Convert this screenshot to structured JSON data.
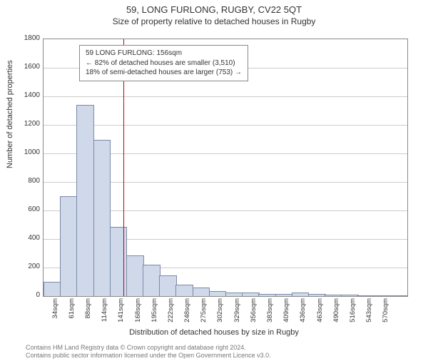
{
  "title": "59, LONG FURLONG, RUGBY, CV22 5QT",
  "subtitle": "Size of property relative to detached houses in Rugby",
  "chart": {
    "type": "histogram",
    "ylabel": "Number of detached properties",
    "xlabel": "Distribution of detached houses by size in Rugby",
    "ylim": [
      0,
      1800
    ],
    "ytick_step": 200,
    "yticks": [
      0,
      200,
      400,
      600,
      800,
      1000,
      1200,
      1400,
      1600,
      1800
    ],
    "xticks": [
      "34sqm",
      "61sqm",
      "88sqm",
      "114sqm",
      "141sqm",
      "168sqm",
      "195sqm",
      "222sqm",
      "248sqm",
      "275sqm",
      "302sqm",
      "329sqm",
      "356sqm",
      "383sqm",
      "409sqm",
      "436sqm",
      "463sqm",
      "490sqm",
      "516sqm",
      "543sqm",
      "570sqm"
    ],
    "bars": [
      95,
      695,
      1335,
      1090,
      480,
      280,
      215,
      140,
      75,
      55,
      30,
      18,
      18,
      12,
      10,
      22,
      8,
      5,
      3,
      0,
      0,
      0
    ],
    "bar_color": "#cfd9ea",
    "bar_border": "#7a8aa8",
    "grid_color": "#cccccc",
    "background": "#ffffff",
    "marker_value": 156,
    "xmin": 34,
    "xmax": 590,
    "marker_color": "#cc0000"
  },
  "annotation": {
    "line1": "59 LONG FURLONG: 156sqm",
    "line2": "← 82% of detached houses are smaller (3,510)",
    "line3": "18% of semi-detached houses are larger (753) →"
  },
  "attribution": {
    "line1": "Contains HM Land Registry data © Crown copyright and database right 2024.",
    "line2": "Contains public sector information licensed under the Open Government Licence v3.0."
  }
}
